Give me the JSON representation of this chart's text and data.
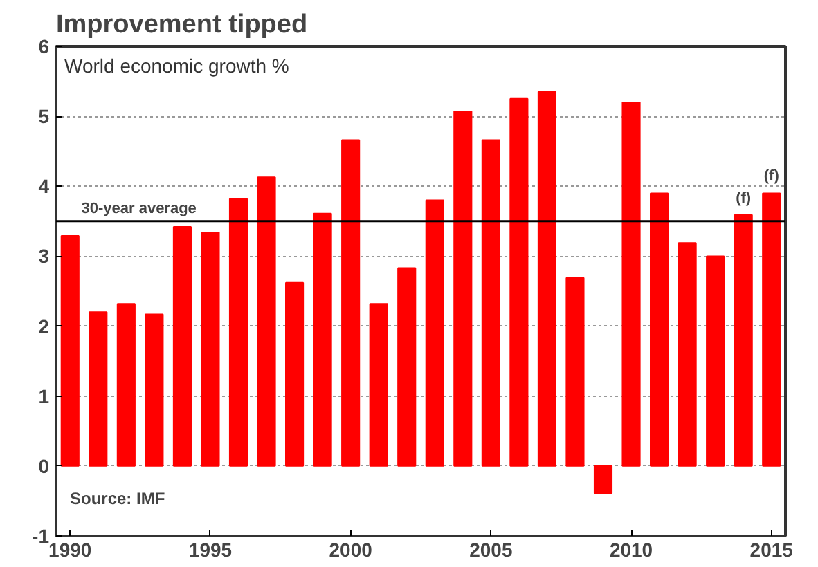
{
  "chart_data": {
    "type": "bar",
    "title": "Improvement tipped",
    "subtitle": "World economic growth %",
    "x": [
      1990,
      1991,
      1992,
      1993,
      1994,
      1995,
      1996,
      1997,
      1998,
      1999,
      2000,
      2001,
      2002,
      2003,
      2004,
      2005,
      2006,
      2007,
      2008,
      2009,
      2010,
      2011,
      2012,
      2013,
      2014,
      2015
    ],
    "values": [
      3.29,
      2.2,
      2.32,
      2.17,
      3.42,
      3.34,
      3.82,
      4.13,
      2.62,
      3.61,
      4.66,
      2.32,
      2.83,
      3.8,
      5.07,
      4.66,
      5.25,
      5.35,
      2.69,
      -0.39,
      5.2,
      3.9,
      3.19,
      3.0,
      3.59,
      3.9
    ],
    "color": "#ff0000",
    "xlim": [
      1989.5,
      2015.5
    ],
    "xticks": [
      1990,
      1995,
      2000,
      2005,
      2010,
      2015
    ],
    "ylim": [
      -1,
      6
    ],
    "yticks": [
      -1,
      0,
      1,
      2,
      3,
      4,
      5,
      6
    ],
    "grid": "y",
    "ref_lines": [
      {
        "axis": "y",
        "value": 3.5,
        "label": "30-year average",
        "color": "#000000"
      }
    ],
    "annotations": [
      {
        "text": "(f)",
        "x": 2014,
        "y": 3.59
      },
      {
        "text": "(f)",
        "x": 2015,
        "y": 3.9
      },
      "Source: IMF"
    ]
  }
}
